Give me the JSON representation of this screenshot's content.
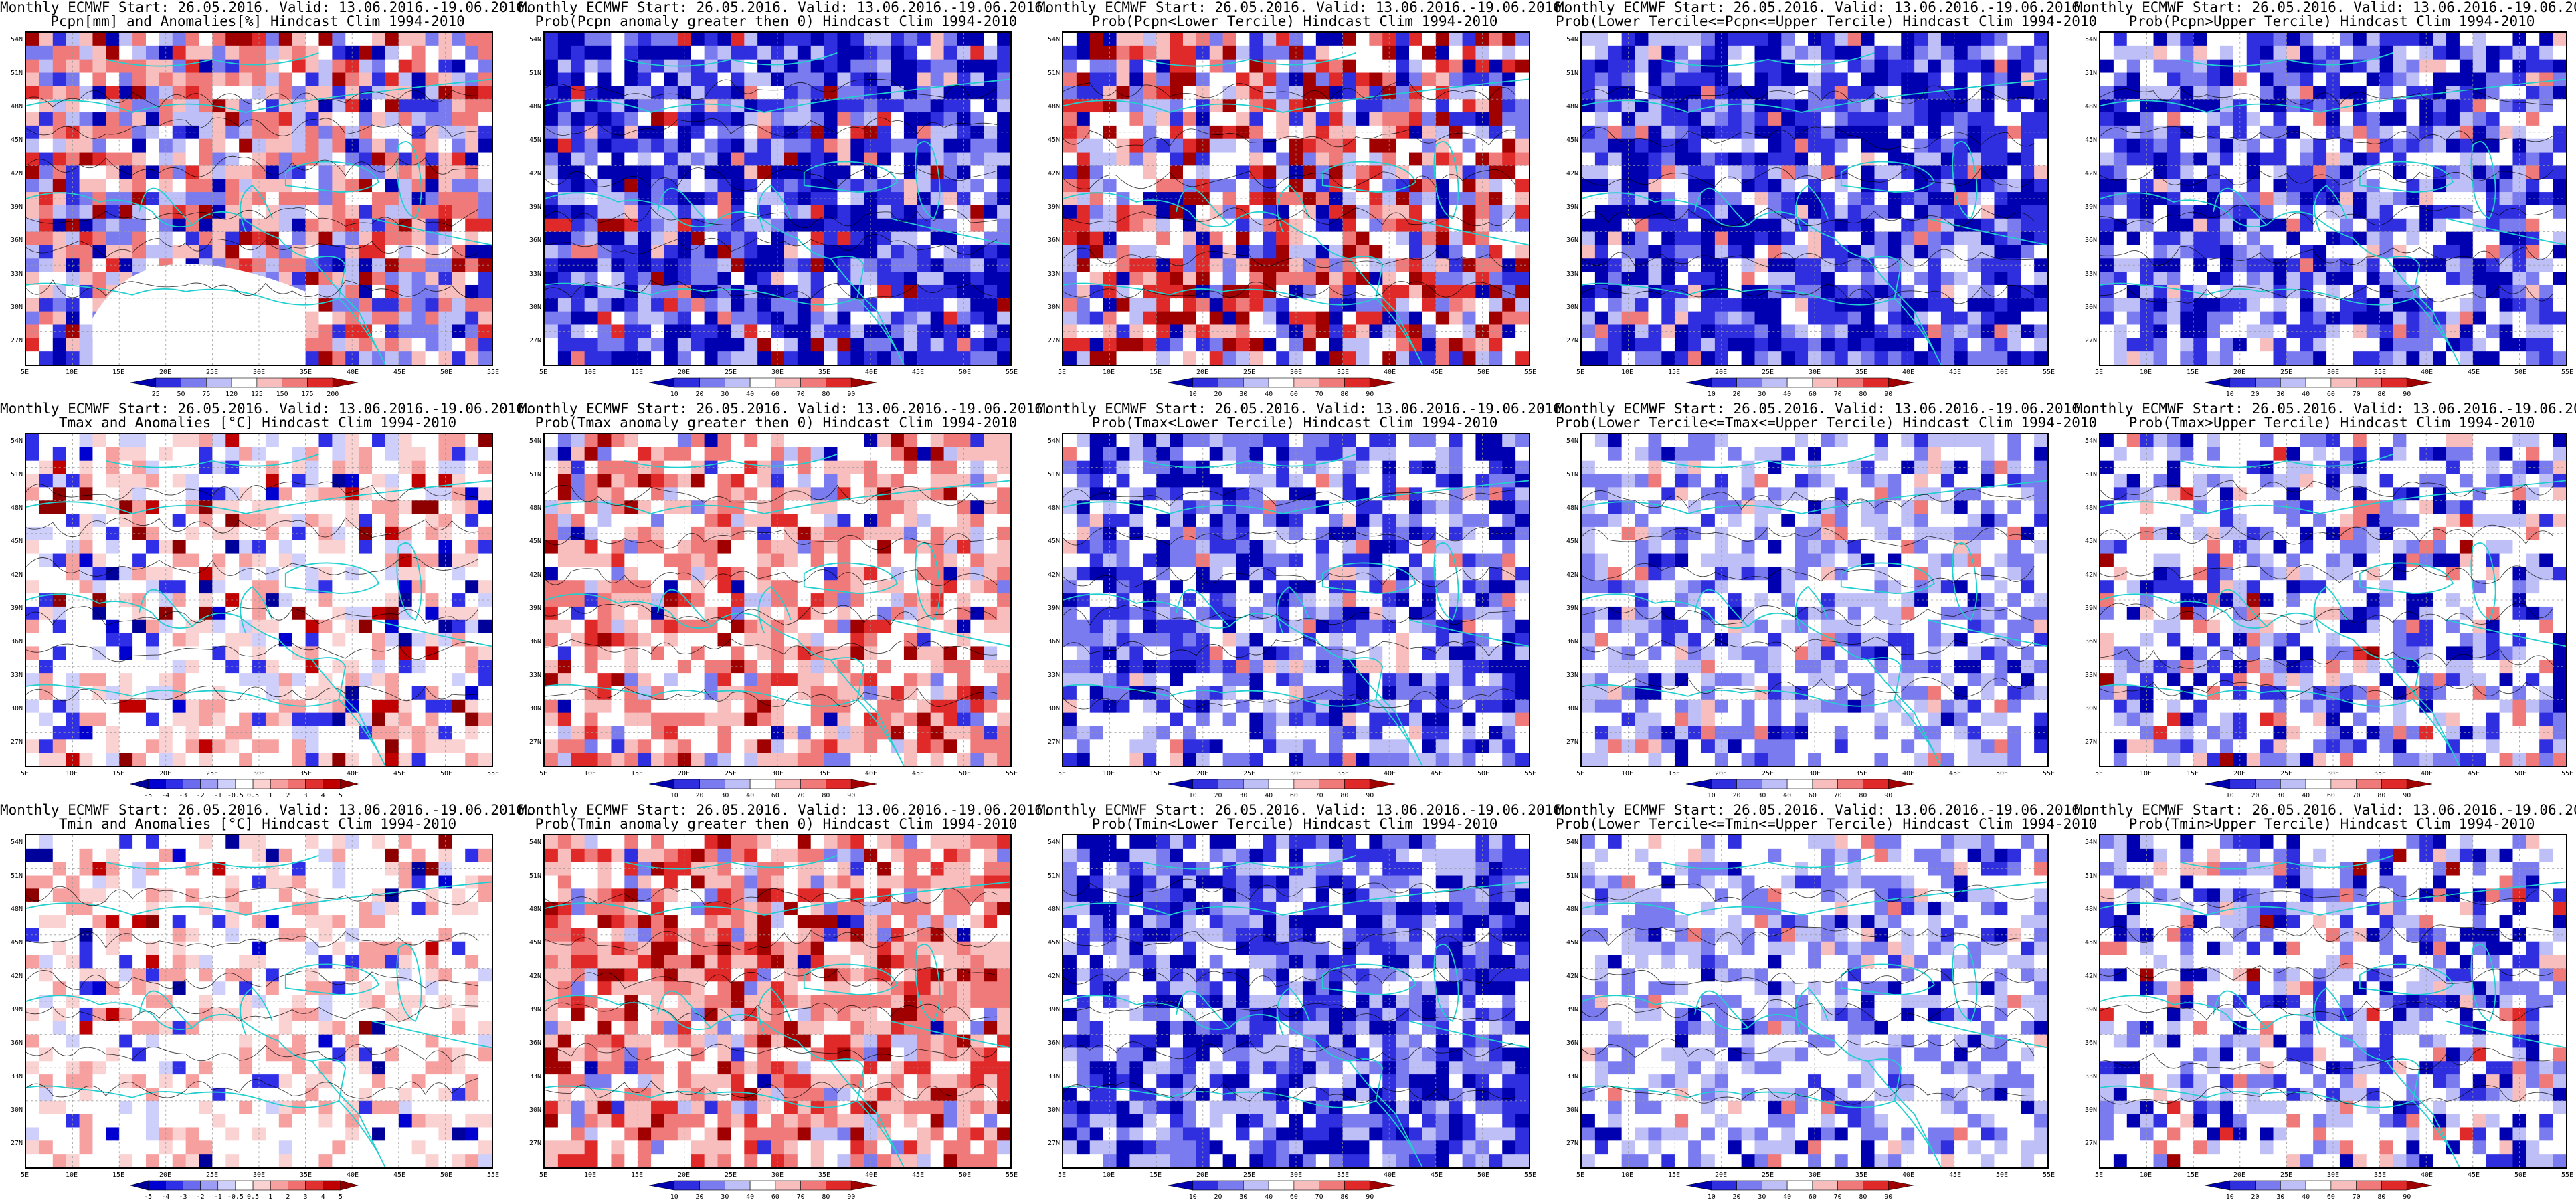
{
  "common": {
    "lat_labels": [
      "54N",
      "51N",
      "48N",
      "45N",
      "42N",
      "39N",
      "36N",
      "33N",
      "30N",
      "27N"
    ],
    "lon_labels": [
      "5E",
      "10E",
      "15E",
      "20E",
      "25E",
      "30E",
      "35E",
      "40E",
      "45E",
      "50E",
      "55E"
    ],
    "land_outline_color": "#22cfcf",
    "contour_color": "#000000"
  },
  "colorbars": {
    "pcpn_anom": {
      "labels": [
        "25",
        "50",
        "75",
        "120",
        "125",
        "150",
        "175",
        "200"
      ],
      "colors": [
        "#0000b0",
        "#2f2fe0",
        "#7b7bf0",
        "#bfbff8",
        "#ffffff",
        "#f8bebe",
        "#f07a7a",
        "#e02a2a",
        "#a00000"
      ]
    },
    "prob": {
      "labels": [
        "10",
        "20",
        "30",
        "40",
        "60",
        "70",
        "80",
        "90"
      ],
      "colors": [
        "#0000b0",
        "#2f2fe0",
        "#7b7bf0",
        "#bfbff8",
        "#ffffff",
        "#f8bebe",
        "#f07a7a",
        "#e02a2a",
        "#a00000"
      ]
    },
    "temp_anom": {
      "labels": [
        "-5",
        "-4",
        "-3",
        "-2",
        "-1",
        "-0.5",
        "0.5",
        "1",
        "2",
        "3",
        "4",
        "5"
      ],
      "colors": [
        "#00009a",
        "#0000d0",
        "#2f2fe8",
        "#6b6bf0",
        "#9d9df5",
        "#cfcffb",
        "#ffffff",
        "#fbd2d2",
        "#f6a0a0",
        "#f07070",
        "#e03030",
        "#c00000",
        "#8e0000"
      ]
    }
  },
  "panels": [
    {
      "title1": "Monthly ECMWF Start: 26.05.2016. Valid: 13.06.2016.-19.06.2016.",
      "title2": "Pcpn[mm] and Anomalies[%] Hindcast Clim 1994-2010",
      "colorbar": "pcpn_anom",
      "mix": [
        0.15,
        0.25,
        0.1,
        0.4,
        0.3
      ],
      "land_white": true,
      "seed": 11
    },
    {
      "title1": "Monthly ECMWF Start: 26.05.2016. Valid: 13.06.2016.-19.06.2016.",
      "title2": "Prob(Pcpn anomaly greater then 0) Hindcast Clim 1994-2010",
      "colorbar": "prob",
      "mix": [
        0.5,
        0.3,
        0.1,
        0.05,
        0.05
      ],
      "land_white": false,
      "seed": 12
    },
    {
      "title1": "Monthly ECMWF Start: 26.05.2016. Valid: 13.06.2016.-19.06.2016.",
      "title2": "Prob(Pcpn<Lower Tercile) Hindcast Clim 1994-2010",
      "colorbar": "prob",
      "mix": [
        0.15,
        0.2,
        0.2,
        0.2,
        0.25
      ],
      "land_white": false,
      "seed": 13
    },
    {
      "title1": "Monthly ECMWF Start: 26.05.2016. Valid: 13.06.2016.-19.06.2016.",
      "title2": "Prob(Lower Tercile<=Pcpn<=Upper Tercile) Hindcast Clim 1994-2010",
      "colorbar": "prob",
      "mix": [
        0.55,
        0.25,
        0.15,
        0.05,
        0.0
      ],
      "land_white": false,
      "seed": 14
    },
    {
      "title1": "Monthly ECMWF Start: 26.05.2016. Valid: 13.06.2016.-19.06.2016.",
      "title2": "Prob(Pcpn>Upper Tercile) Hindcast Clim 1994-2010",
      "colorbar": "prob",
      "mix": [
        0.4,
        0.3,
        0.25,
        0.05,
        0.0
      ],
      "land_white": false,
      "seed": 15
    },
    {
      "title1": "Monthly ECMWF Start: 26.05.2016. Valid: 13.06.2016.-19.06.2016.",
      "title2": "Tmax and Anomalies [°C] Hindcast Clim 1994-2010",
      "colorbar": "temp_anom",
      "mix": [
        0.05,
        0.15,
        0.45,
        0.3,
        0.05
      ],
      "land_white": false,
      "seed": 21
    },
    {
      "title1": "Monthly ECMWF Start: 26.05.2016. Valid: 13.06.2016.-19.06.2016.",
      "title2": "Prob(Tmax anomaly greater then 0) Hindcast Clim 1994-2010",
      "colorbar": "prob",
      "mix": [
        0.05,
        0.1,
        0.3,
        0.45,
        0.1
      ],
      "land_white": false,
      "seed": 22
    },
    {
      "title1": "Monthly ECMWF Start: 26.05.2016. Valid: 13.06.2016.-19.06.2016.",
      "title2": "Prob(Tmax<Lower Tercile) Hindcast Clim 1994-2010",
      "colorbar": "prob",
      "mix": [
        0.35,
        0.35,
        0.25,
        0.05,
        0.0
      ],
      "land_white": false,
      "seed": 23
    },
    {
      "title1": "Monthly ECMWF Start: 26.05.2016. Valid: 13.06.2016.-19.06.2016.",
      "title2": "Prob(Lower Tercile<=Tmax<=Upper Tercile) Hindcast Clim 1994-2010",
      "colorbar": "prob",
      "mix": [
        0.1,
        0.4,
        0.45,
        0.05,
        0.0
      ],
      "land_white": false,
      "seed": 24
    },
    {
      "title1": "Monthly ECMWF Start: 26.05.2016. Valid: 13.06.2016.-19.06.2016.",
      "title2": "Prob(Tmax>Upper Tercile) Hindcast Clim 1994-2010",
      "colorbar": "prob",
      "mix": [
        0.2,
        0.25,
        0.45,
        0.08,
        0.02
      ],
      "land_white": false,
      "seed": 25
    },
    {
      "title1": "Monthly ECMWF Start: 26.05.2016. Valid: 13.06.2016.-19.06.2016.",
      "title2": "Tmin and Anomalies [°C] Hindcast Clim 1994-2010",
      "colorbar": "temp_anom",
      "mix": [
        0.02,
        0.08,
        0.6,
        0.28,
        0.02
      ],
      "land_white": false,
      "seed": 31
    },
    {
      "title1": "Monthly ECMWF Start: 26.05.2016. Valid: 13.06.2016.-19.06.2016.",
      "title2": "Prob(Tmin anomaly greater then 0) Hindcast Clim 1994-2010",
      "colorbar": "prob",
      "mix": [
        0.02,
        0.08,
        0.2,
        0.5,
        0.2
      ],
      "land_white": false,
      "seed": 32
    },
    {
      "title1": "Monthly ECMWF Start: 26.05.2016. Valid: 13.06.2016.-19.06.2016.",
      "title2": "Prob(Tmin<Lower Tercile) Hindcast Clim 1994-2010",
      "colorbar": "prob",
      "mix": [
        0.45,
        0.35,
        0.2,
        0.0,
        0.0
      ],
      "land_white": false,
      "seed": 33
    },
    {
      "title1": "Monthly ECMWF Start: 26.05.2016. Valid: 13.06.2016.-19.06.2016.",
      "title2": "Prob(Lower Tercile<=Tmin<=Upper Tercile) Hindcast Clim 1994-2010",
      "colorbar": "prob",
      "mix": [
        0.1,
        0.4,
        0.45,
        0.05,
        0.0
      ],
      "land_white": false,
      "seed": 34
    },
    {
      "title1": "Monthly ECMWF Start: 26.05.2016. Valid: 13.06.2016.-19.06.2016.",
      "title2": "Prob(Tmin>Upper Tercile) Hindcast Clim 1994-2010",
      "colorbar": "prob",
      "mix": [
        0.2,
        0.25,
        0.45,
        0.08,
        0.02
      ],
      "land_white": false,
      "seed": 35
    }
  ]
}
